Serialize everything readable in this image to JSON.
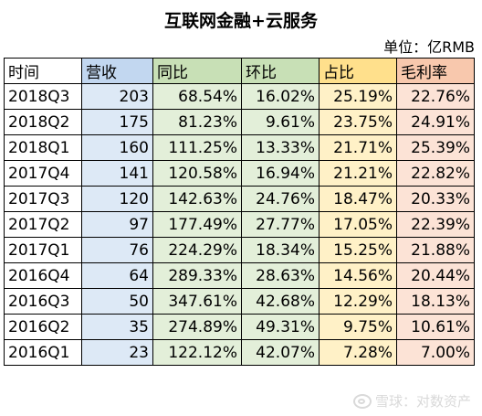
{
  "title": "互联网金融+云服务",
  "unit": "单位：亿RMB",
  "colors": {
    "time": "#ffffff",
    "revenue": "#dde9f6",
    "yoy": "#e3efd9",
    "qoq": "#e3efd9",
    "share": "#fff1c7",
    "margin": "#fce3d6",
    "revenue_header": "#c2d7f0",
    "yoy_header": "#c8e0b6",
    "qoq_header": "#c8e0b6",
    "share_header": "#ffe08c",
    "margin_header": "#f8c8ad"
  },
  "table": {
    "headers": [
      "时间",
      "营收",
      "同比",
      "环比",
      "占比",
      "毛利率"
    ],
    "rows": [
      [
        "2018Q3",
        "203",
        "68.54%",
        "16.02%",
        "25.19%",
        "22.76%"
      ],
      [
        "2018Q2",
        "175",
        "81.23%",
        "9.61%",
        "23.75%",
        "24.91%"
      ],
      [
        "2018Q1",
        "160",
        "111.25%",
        "13.33%",
        "21.71%",
        "25.39%"
      ],
      [
        "2017Q4",
        "141",
        "120.58%",
        "16.94%",
        "21.21%",
        "22.82%"
      ],
      [
        "2017Q3",
        "120",
        "142.63%",
        "24.76%",
        "18.47%",
        "20.33%"
      ],
      [
        "2017Q2",
        "97",
        "177.49%",
        "27.77%",
        "17.05%",
        "22.39%"
      ],
      [
        "2017Q1",
        "76",
        "224.29%",
        "18.34%",
        "15.25%",
        "21.88%"
      ],
      [
        "2016Q4",
        "64",
        "289.33%",
        "28.63%",
        "14.56%",
        "20.44%"
      ],
      [
        "2016Q3",
        "50",
        "347.61%",
        "42.68%",
        "12.29%",
        "18.13%"
      ],
      [
        "2016Q2",
        "35",
        "274.89%",
        "49.31%",
        "9.75%",
        "10.61%"
      ],
      [
        "2016Q1",
        "23",
        "122.12%",
        "42.07%",
        "7.28%",
        "7.00%"
      ]
    ]
  },
  "watermark": "雪球：对数资产"
}
